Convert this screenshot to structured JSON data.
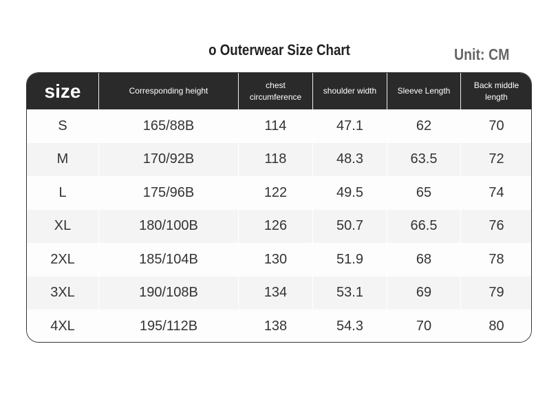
{
  "header": {
    "title": "o Outerwear Size Chart",
    "unit": "Unit: CM"
  },
  "table": {
    "columns": [
      "size",
      "Corresponding height",
      "chest circumference",
      "shoulder width",
      "Sleeve Length",
      "Back middle length"
    ],
    "rows": [
      [
        "S",
        "165/88B",
        114,
        47.1,
        62,
        70
      ],
      [
        "M",
        "170/92B",
        118,
        48.3,
        63.5,
        72
      ],
      [
        "L",
        "175/96B",
        122,
        49.5,
        65,
        74
      ],
      [
        "XL",
        "180/100B",
        126,
        50.7,
        66.5,
        76
      ],
      [
        "2XL",
        "185/104B",
        130,
        51.9,
        68,
        78
      ],
      [
        "3XL",
        "190/108B",
        134,
        53.1,
        69,
        79
      ],
      [
        "4XL",
        "195/112B",
        138,
        54.3,
        70,
        80
      ]
    ]
  }
}
